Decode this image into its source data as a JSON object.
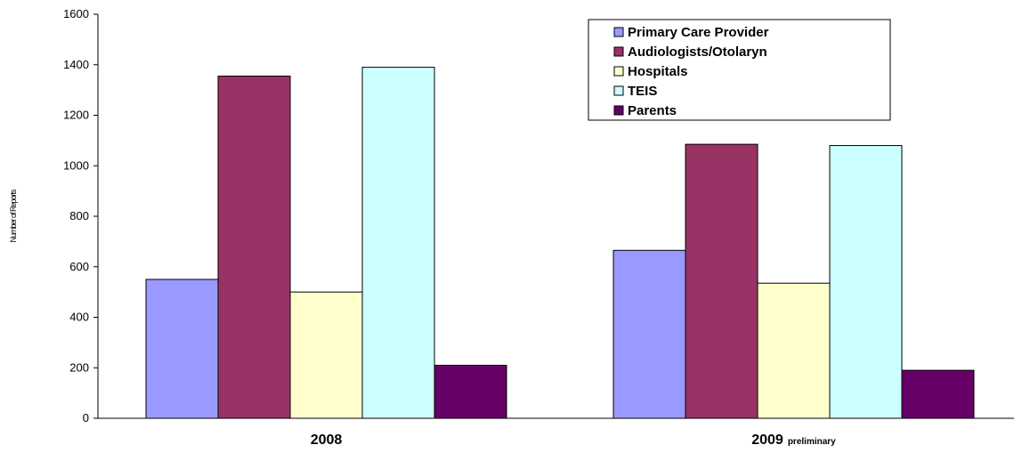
{
  "chart_data": {
    "type": "bar",
    "title": "",
    "xlabel": "",
    "ylabel": "Number of Reports",
    "ylim": [
      0,
      1600
    ],
    "yticks": [
      0,
      200,
      400,
      600,
      800,
      1000,
      1200,
      1400,
      1600
    ],
    "grid": false,
    "legend_position": "top-right",
    "categories": [
      {
        "label": "2008",
        "suffix": ""
      },
      {
        "label": "2009",
        "suffix": "preliminary"
      }
    ],
    "series": [
      {
        "name": "Primary Care Provider",
        "color": "#9999ff",
        "values": [
          550,
          665
        ]
      },
      {
        "name": "Audiologists/Otolaryn",
        "color": "#993366",
        "values": [
          1355,
          1085
        ]
      },
      {
        "name": "Hospitals",
        "color": "#ffffcc",
        "values": [
          500,
          535
        ]
      },
      {
        "name": "TEIS",
        "color": "#ccffff",
        "values": [
          1390,
          1080
        ]
      },
      {
        "name": "Parents",
        "color": "#660066",
        "values": [
          210,
          190
        ]
      }
    ]
  }
}
